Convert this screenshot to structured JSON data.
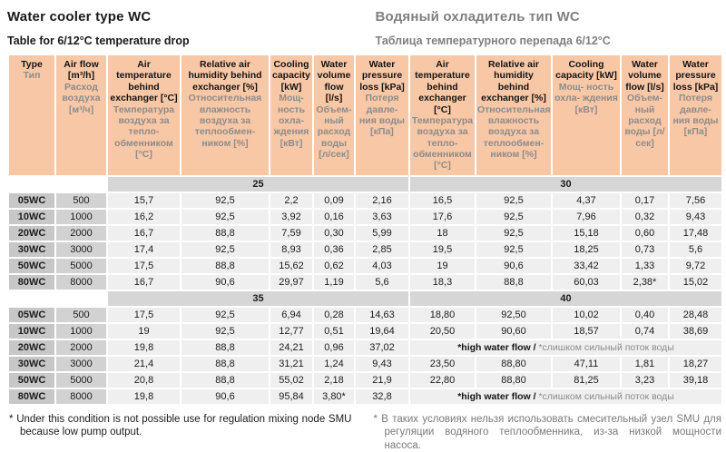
{
  "titles": {
    "left_title": "Water cooler type WC",
    "left_subtitle": "Table for 6/12°C temperature drop",
    "right_title": "Водяный охладитель тип WC",
    "right_subtitle": "Таблица температурного перепада 6/12°C"
  },
  "colors": {
    "header_bg": "#f8c7a6",
    "band_bg": "#d6d6d6",
    "type_cell_bg": "#c7c7c7",
    "airflow_cell_bg": "#d2d2d2",
    "data_cell_bg": "#efefef",
    "secondary_text": "#8c8c8c",
    "title_gray": "#7f7f7f"
  },
  "table": {
    "headers": [
      {
        "en": "Type",
        "ru": "Тип"
      },
      {
        "en": "Air flow [m³/h]",
        "ru": "Расход воздуха [м³/ч]"
      },
      {
        "en": "Air temperature behind exchanger [°C]",
        "ru": "Температура воздуха за тепло- обменником [°C]"
      },
      {
        "en": "Relative air humidity behind exchanger [%]",
        "ru": "Относительная влажность воздуха за теплообмен- ником [%]"
      },
      {
        "en": "Cooling capacity [kW]",
        "ru": "Мощ- ность охла- ждения [кВт]"
      },
      {
        "en": "Water volume flow [l/s]",
        "ru": "Объем- ный расход воды [л/сек]"
      },
      {
        "en": "Water pressure loss [kPa]",
        "ru": "Потеря давле- ния воды [кПа]"
      },
      {
        "en": "Air temperature behind exchanger [°C]",
        "ru": "Температура воздуха за тепло- обменником [°C]"
      },
      {
        "en": "Relative air humidity behind exchanger [%]",
        "ru": "Относительная влажность воздуха за теплообмен- ником [%]"
      },
      {
        "en": "Cooling capacity [kW]",
        "ru": "Мощ- ность охла- ждения [кВт]"
      },
      {
        "en": "Water volume flow [l/s]",
        "ru": "Объем- ный расход воды [л/сек]"
      },
      {
        "en": "Water pressure loss [kPa]",
        "ru": "Потеря давле- ния воды [кПа]"
      }
    ],
    "note_en": "*high water flow /",
    "note_ru": "*слишком сильный поток воды",
    "blocks": [
      {
        "band_left": "25",
        "band_right": "30",
        "rows": [
          {
            "type": "05WC",
            "airflow": "500",
            "left": [
              "15,7",
              "92,5",
              "2,2",
              "0,09",
              "2,16"
            ],
            "right": [
              "16,5",
              "92,5",
              "4,37",
              "0,17",
              "7,56"
            ]
          },
          {
            "type": "10WC",
            "airflow": "1000",
            "left": [
              "16,2",
              "92,5",
              "3,92",
              "0,16",
              "3,63"
            ],
            "right": [
              "17,6",
              "92,5",
              "7,96",
              "0,32",
              "9,43"
            ]
          },
          {
            "type": "20WC",
            "airflow": "2000",
            "left": [
              "16,7",
              "88,8",
              "7,59",
              "0,30",
              "5,99"
            ],
            "right": [
              "18",
              "92,5",
              "15,18",
              "0,60",
              "17,48"
            ]
          },
          {
            "type": "30WC",
            "airflow": "3000",
            "left": [
              "17,4",
              "92,5",
              "8,93",
              "0,36",
              "2,85"
            ],
            "right": [
              "19,5",
              "92,5",
              "18,25",
              "0,73",
              "5,6"
            ]
          },
          {
            "type": "50WC",
            "airflow": "5000",
            "left": [
              "17,5",
              "88,8",
              "15,62",
              "0,62",
              "4,03"
            ],
            "right": [
              "19",
              "90,6",
              "33,42",
              "1,33",
              "9,72"
            ]
          },
          {
            "type": "80WC",
            "airflow": "8000",
            "left": [
              "16,7",
              "90,6",
              "29,97",
              "1,19",
              "5,6"
            ],
            "right": [
              "18,3",
              "88,8",
              "60,03",
              "2,38*",
              "15,02"
            ]
          }
        ]
      },
      {
        "band_left": "35",
        "band_right": "40",
        "rows": [
          {
            "type": "05WC",
            "airflow": "500",
            "left": [
              "17,5",
              "92,5",
              "6,94",
              "0,28",
              "14,63"
            ],
            "right": [
              "18,80",
              "92,50",
              "10,02",
              "0,40",
              "28,48"
            ]
          },
          {
            "type": "10WC",
            "airflow": "1000",
            "left": [
              "19",
              "92,5",
              "12,77",
              "0,51",
              "19,64"
            ],
            "right": [
              "20,50",
              "90,60",
              "18,57",
              "0,74",
              "38,69"
            ]
          },
          {
            "type": "20WC",
            "airflow": "2000",
            "left": [
              "19,8",
              "88,8",
              "24,21",
              "0,96",
              "37,02"
            ],
            "note": true
          },
          {
            "type": "30WC",
            "airflow": "3000",
            "left": [
              "21,4",
              "88,8",
              "31,21",
              "1,24",
              "9,43"
            ],
            "right": [
              "23,50",
              "88,80",
              "47,11",
              "1,81",
              "18,27"
            ]
          },
          {
            "type": "50WC",
            "airflow": "5000",
            "left": [
              "20,8",
              "88,8",
              "55,02",
              "2,18",
              "21,9"
            ],
            "right": [
              "22,80",
              "88,80",
              "81,25",
              "3,23",
              "39,18"
            ]
          },
          {
            "type": "80WC",
            "airflow": "8000",
            "left": [
              "19,8",
              "90,6",
              "95,84",
              "3,80*",
              "32,8"
            ],
            "note": true
          }
        ]
      }
    ]
  },
  "footnotes": {
    "marker": "*",
    "en": "Under this condition is not possible use for regulation mixing node SMU because low pump output.",
    "ru": "В таких условиях нельзя использовать смесительный узел SMU для регуляции водяного теплообменника, из-за низкой мощности насоса."
  }
}
